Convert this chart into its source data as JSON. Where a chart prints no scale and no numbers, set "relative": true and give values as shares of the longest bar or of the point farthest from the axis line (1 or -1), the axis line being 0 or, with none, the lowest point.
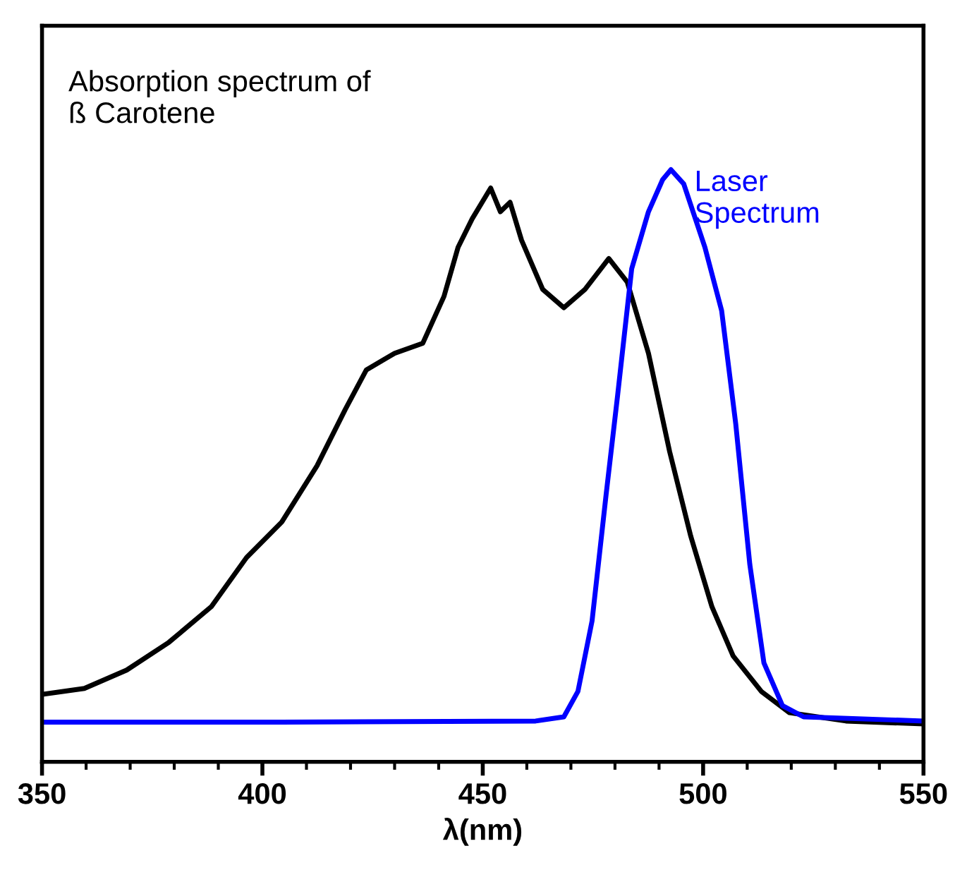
{
  "chart_data": {
    "type": "line",
    "xlabel": "λ(nm)",
    "xlim": [
      350,
      550
    ],
    "xticks": [
      350,
      400,
      450,
      500,
      550
    ],
    "relative": true,
    "grid": false,
    "legend": false,
    "marker": "none",
    "line_style": "solid",
    "series": [
      {
        "name": "Absorption spectrum of\nß Carotene",
        "color": "#000000",
        "x": [
          350,
          359.6,
          369.2,
          378.8,
          388.4,
          396.4,
          404.4,
          412.4,
          418.8,
          423.6,
          430,
          436.4,
          441.2,
          444.4,
          447.6,
          451.8,
          454,
          456.2,
          458.8,
          463.6,
          468.4,
          473.2,
          478.6,
          482.8,
          487.6,
          492.4,
          497.2,
          502,
          506.8,
          513.2,
          519.6,
          532.4,
          550
        ],
        "values": [
          0.114,
          0.124,
          0.155,
          0.202,
          0.262,
          0.345,
          0.405,
          0.5,
          0.595,
          0.662,
          0.69,
          0.707,
          0.786,
          0.869,
          0.917,
          0.969,
          0.929,
          0.945,
          0.881,
          0.798,
          0.767,
          0.798,
          0.85,
          0.81,
          0.69,
          0.524,
          0.381,
          0.262,
          0.179,
          0.119,
          0.083,
          0.069,
          0.064
        ]
      },
      {
        "name": "Laser\nSpectrum",
        "color": "#0000ff",
        "x": [
          350,
          404.4,
          462,
          468.4,
          471.6,
          474.8,
          478,
          480.6,
          483.8,
          487.6,
          490.8,
          492.7,
          495.6,
          500.4,
          504.2,
          507.4,
          510.6,
          513.8,
          518,
          522.8,
          550
        ],
        "values": [
          0.067,
          0.067,
          0.069,
          0.076,
          0.119,
          0.238,
          0.452,
          0.619,
          0.833,
          0.929,
          0.983,
          1,
          0.976,
          0.869,
          0.762,
          0.571,
          0.333,
          0.167,
          0.095,
          0.076,
          0.069
        ]
      }
    ]
  }
}
